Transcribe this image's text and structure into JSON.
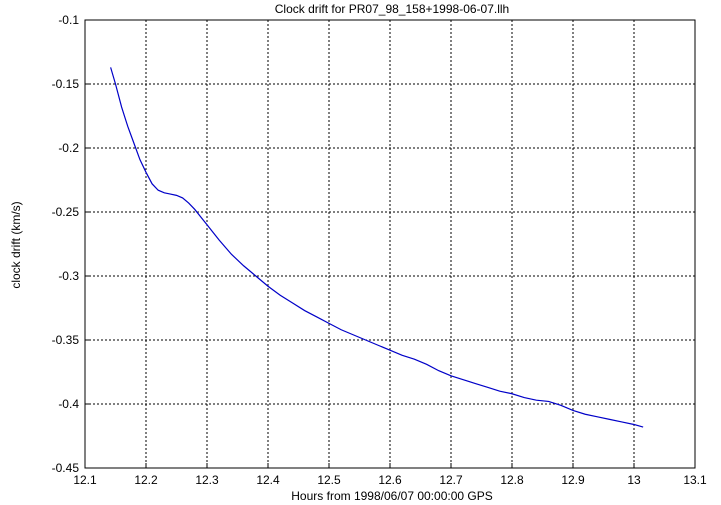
{
  "chart_data": {
    "type": "line",
    "title": "Clock drift for PR07_98_158+1998-06-07.llh",
    "xlabel": "Hours from 1998/06/07 00:00:00 GPS",
    "ylabel": "clock drift (km/s)",
    "xlim": [
      12.1,
      13.1
    ],
    "ylim": [
      -0.45,
      -0.1
    ],
    "x_ticks": [
      "12.1",
      "12.2",
      "12.3",
      "12.4",
      "12.5",
      "12.6",
      "12.7",
      "12.8",
      "12.9",
      "13",
      "13.1"
    ],
    "y_ticks": [
      "-0.1",
      "-0.15",
      "-0.2",
      "-0.25",
      "-0.3",
      "-0.35",
      "-0.4",
      "-0.45"
    ],
    "grid": true,
    "line_color": "#0000c8",
    "series": [
      {
        "x": [
          12.142,
          12.15,
          12.16,
          12.17,
          12.18,
          12.19,
          12.2,
          12.21,
          12.22,
          12.23,
          12.24,
          12.25,
          12.26,
          12.27,
          12.28,
          12.29,
          12.3,
          12.32,
          12.34,
          12.36,
          12.38,
          12.4,
          12.42,
          12.44,
          12.46,
          12.48,
          12.5,
          12.52,
          12.54,
          12.56,
          12.58,
          12.6,
          12.62,
          12.64,
          12.66,
          12.68,
          12.7,
          12.72,
          12.74,
          12.76,
          12.78,
          12.8,
          12.82,
          12.84,
          12.86,
          12.88,
          12.9,
          12.92,
          12.94,
          12.96,
          12.98,
          13.0,
          13.015
        ],
        "y": [
          -0.137,
          -0.15,
          -0.168,
          -0.183,
          -0.196,
          -0.209,
          -0.219,
          -0.228,
          -0.233,
          -0.235,
          -0.236,
          -0.237,
          -0.239,
          -0.243,
          -0.248,
          -0.254,
          -0.26,
          -0.272,
          -0.283,
          -0.292,
          -0.3,
          -0.308,
          -0.315,
          -0.321,
          -0.327,
          -0.332,
          -0.337,
          -0.342,
          -0.346,
          -0.35,
          -0.354,
          -0.358,
          -0.362,
          -0.365,
          -0.369,
          -0.374,
          -0.378,
          -0.381,
          -0.384,
          -0.387,
          -0.39,
          -0.392,
          -0.395,
          -0.397,
          -0.398,
          -0.401,
          -0.405,
          -0.408,
          -0.41,
          -0.412,
          -0.414,
          -0.416,
          -0.418
        ]
      }
    ]
  }
}
